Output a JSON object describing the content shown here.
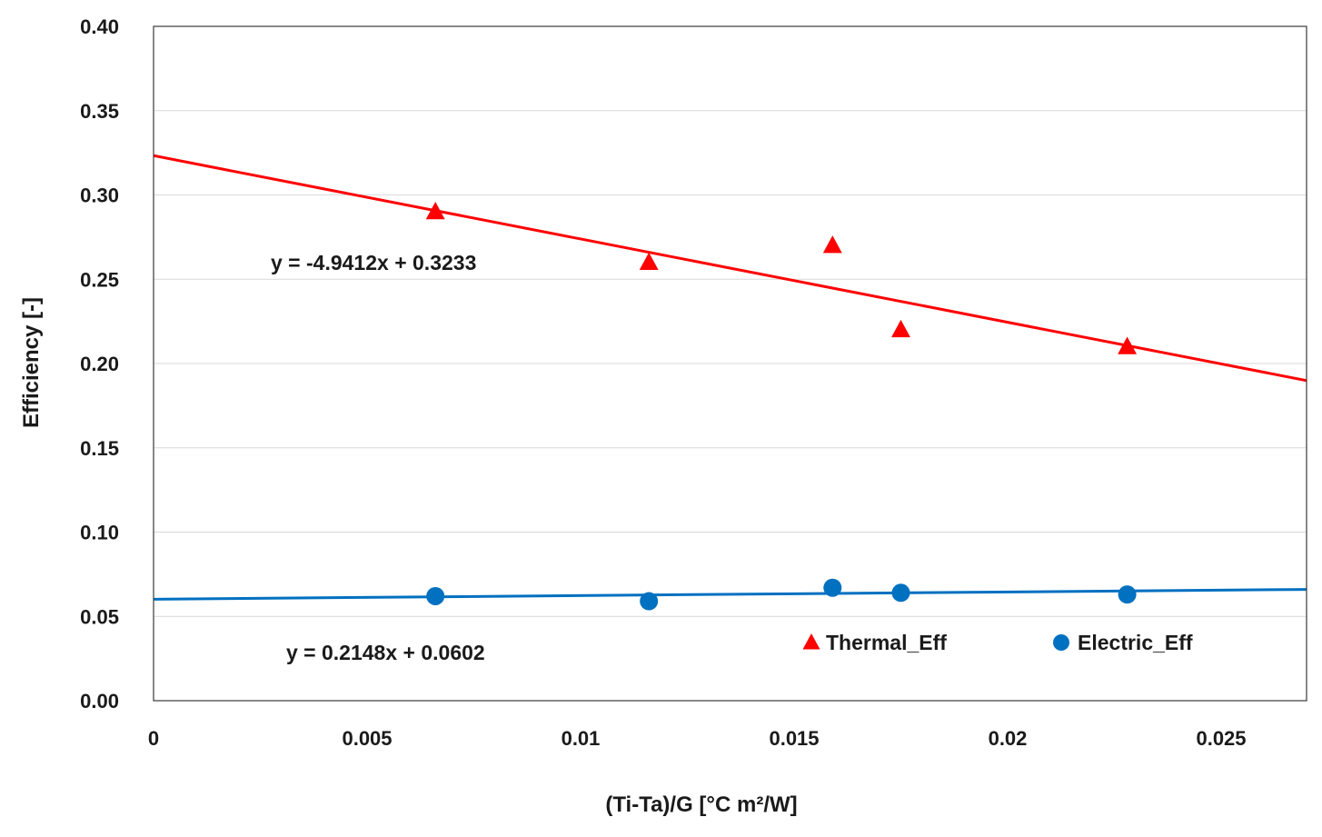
{
  "chart_data": {
    "type": "scatter",
    "title": "",
    "xlabel": "(Ti-Ta)/G [°C m²/W]",
    "ylabel": "Efficiency [-]",
    "xlim": [
      0,
      0.027
    ],
    "ylim": [
      0,
      0.4
    ],
    "x_ticks": [
      {
        "value": 0,
        "label": "0"
      },
      {
        "value": 0.005,
        "label": "0.005"
      },
      {
        "value": 0.01,
        "label": "0.01"
      },
      {
        "value": 0.015,
        "label": "0.015"
      },
      {
        "value": 0.02,
        "label": "0.02"
      },
      {
        "value": 0.025,
        "label": "0.025"
      }
    ],
    "y_ticks": [
      {
        "value": 0,
        "label": "0.00"
      },
      {
        "value": 0.05,
        "label": "0.05"
      },
      {
        "value": 0.1,
        "label": "0.10"
      },
      {
        "value": 0.15,
        "label": "0.15"
      },
      {
        "value": 0.2,
        "label": "0.20"
      },
      {
        "value": 0.25,
        "label": "0.25"
      },
      {
        "value": 0.3,
        "label": "0.30"
      },
      {
        "value": 0.35,
        "label": "0.35"
      },
      {
        "value": 0.4,
        "label": "0.40"
      }
    ],
    "grid": {
      "horizontal": true,
      "vertical": false
    },
    "legend_position": "bottom-right-inside",
    "series": [
      {
        "name": "Thermal_Eff",
        "marker": "triangle",
        "color": "#ff0000",
        "x": [
          0.0066,
          0.0116,
          0.0159,
          0.0175,
          0.0228
        ],
        "y": [
          0.29,
          0.26,
          0.27,
          0.22,
          0.21
        ],
        "trendline": {
          "slope": -4.9412,
          "intercept": 0.3233,
          "equation": "y = -4.9412x + 0.3233"
        }
      },
      {
        "name": "Electric_Eff",
        "marker": "circle",
        "color": "#0070c0",
        "x": [
          0.0066,
          0.0116,
          0.0159,
          0.0175,
          0.0228
        ],
        "y": [
          0.062,
          0.059,
          0.067,
          0.064,
          0.063
        ],
        "trendline": {
          "slope": 0.2148,
          "intercept": 0.0602,
          "equation": "y = 0.2148x + 0.0602"
        }
      }
    ]
  }
}
